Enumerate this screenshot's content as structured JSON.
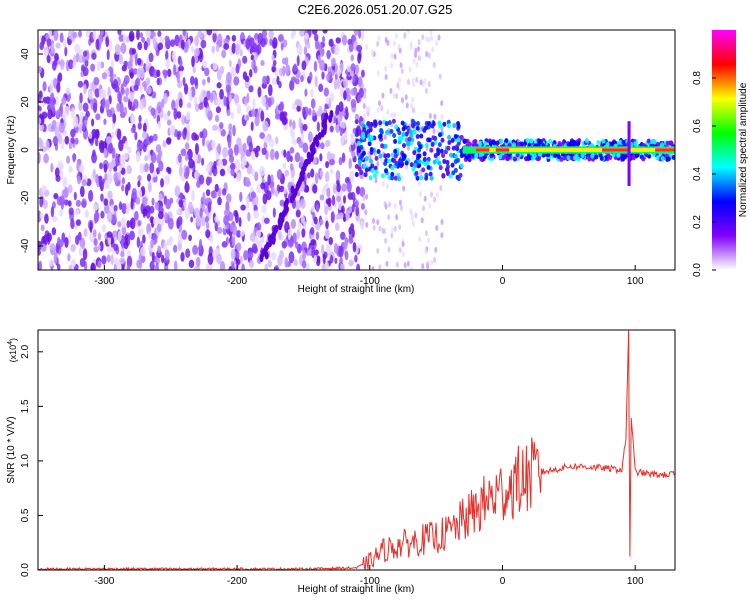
{
  "title": "C2E6.2026.051.20.07.G25",
  "chart_data": [
    {
      "type": "heatmap",
      "xlabel": "Height of straight line (km)",
      "ylabel": "Frequency (Hz)",
      "xlim": [
        -350,
        130
      ],
      "ylim": [
        -50,
        50
      ],
      "xticks": [
        -300,
        -200,
        -100,
        0,
        100
      ],
      "yticks": [
        -40,
        -20,
        0,
        20,
        40
      ],
      "colorbar": {
        "label": "Normalized spectral amplitude",
        "range": [
          0,
          1
        ],
        "ticks": [
          "0.0",
          "0.2",
          "0.4",
          "0.6",
          "0.8"
        ],
        "colors": [
          "#ffffff",
          "#8000ff",
          "#0000ff",
          "#00ffff",
          "#00ff00",
          "#ffff00",
          "#ff0000",
          "#ff00ff"
        ]
      },
      "features": {
        "noise_region_x": [
          -350,
          -105
        ],
        "signal_band_center_hz": 0,
        "signal_band_start_km": -110,
        "diagonal_trace": {
          "x": [
            -180,
            -130
          ],
          "y": [
            -45,
            15
          ]
        },
        "spike_at_km": 95
      }
    },
    {
      "type": "line",
      "xlabel": "Height of straight line (km)",
      "ylabel": "SNR (10 * V/V)",
      "yscale_label": "(x10",
      "yscale_exp": "4",
      "xlim": [
        -350,
        130
      ],
      "ylim": [
        0,
        2.2
      ],
      "xticks": [
        -300,
        -200,
        -100,
        0,
        100
      ],
      "yticks": [
        "0.0",
        "0.5",
        "1.0",
        "1.5",
        "2.0"
      ],
      "series": [
        {
          "color": "#e8302a",
          "x": [
            -350,
            -300,
            -250,
            -200,
            -150,
            -110,
            -100,
            -90,
            -80,
            -70,
            -60,
            -50,
            -40,
            -30,
            -20,
            -10,
            0,
            10,
            20,
            30,
            40,
            50,
            60,
            70,
            80,
            90,
            93,
            95,
            96,
            97,
            100,
            110,
            120,
            130
          ],
          "y": [
            0.01,
            0.01,
            0.01,
            0.01,
            0.01,
            0.02,
            0.08,
            0.18,
            0.22,
            0.25,
            0.28,
            0.3,
            0.35,
            0.45,
            0.55,
            0.65,
            0.72,
            0.8,
            0.86,
            0.9,
            0.92,
            0.95,
            0.95,
            0.94,
            0.93,
            0.92,
            1.2,
            2.2,
            0.1,
            1.4,
            0.9,
            0.88,
            0.87,
            0.88
          ]
        }
      ]
    }
  ]
}
